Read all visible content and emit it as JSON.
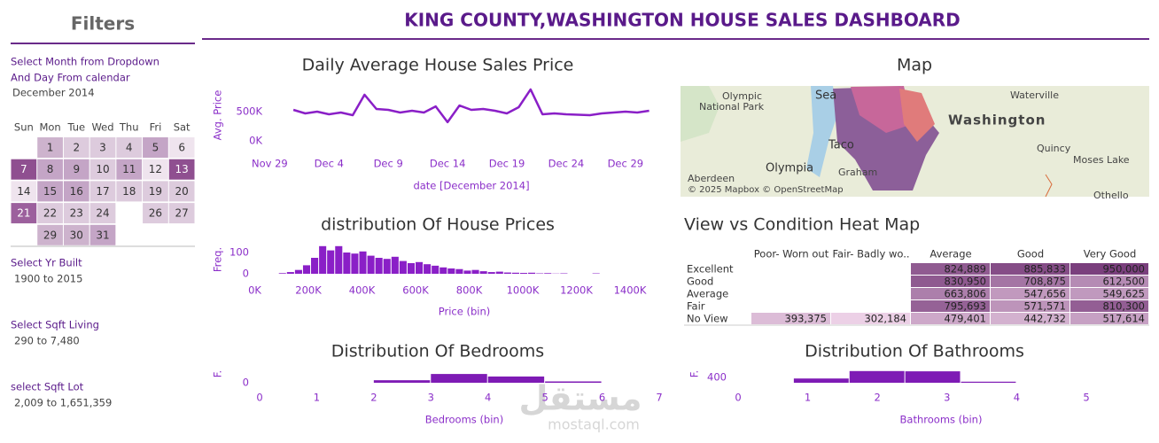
{
  "header": {
    "title": "KING COUNTY,WASHINGTON HOUSE SALES DASHBOARD"
  },
  "filters": {
    "title": "Filters",
    "month_label": [
      "Select Month from Dropdown",
      "And Day From calendar"
    ],
    "month_value": "December 2014",
    "calendar": {
      "weekdays": [
        "Sun",
        "Mon",
        "Tue",
        "Wed",
        "Thu",
        "Fri",
        "Sat"
      ],
      "weeks": [
        [
          null,
          1,
          2,
          3,
          4,
          5,
          6
        ],
        [
          7,
          8,
          9,
          10,
          11,
          12,
          13
        ],
        [
          14,
          15,
          16,
          17,
          18,
          19,
          20
        ],
        [
          21,
          22,
          23,
          24,
          null,
          26,
          27
        ],
        [
          null,
          29,
          30,
          31,
          null,
          null,
          null
        ]
      ],
      "shades": [
        [
          null,
          "#cdb3cd",
          "#ddcbdd",
          "#ddcbdd",
          "#ddcbdd",
          "#c4a5c6",
          "#efe4ee"
        ],
        [
          "#8f4f90",
          "#c4a5c6",
          "#c4a5c6",
          "#ddcbdd",
          "#c4a5c6",
          "#efe4ee",
          "#8f4f90"
        ],
        [
          "#efe4ee",
          "#c4a5c6",
          "#c4a5c6",
          "#ddcbdd",
          "#ddcbdd",
          "#ddcbdd",
          "#ddcbdd"
        ],
        [
          "#9c609d",
          "#ddcbdd",
          "#ddcbdd",
          "#ddcbdd",
          null,
          "#ddcbdd",
          "#ddcbdd"
        ],
        [
          null,
          "#cdb3cd",
          "#cdb3cd",
          "#c4a5c6",
          null,
          null,
          null
        ]
      ]
    },
    "ranges": [
      {
        "label": "Select Yr Built",
        "value": "1900 to 2015"
      },
      {
        "label": "Select Sqft Living",
        "value": "290 to 7,480"
      },
      {
        "label": "select Sqft Lot",
        "value": "2,009 to 1,651,359"
      }
    ]
  },
  "chart_data": [
    {
      "type": "line",
      "title": "Daily Average House Sales Price",
      "x_label": "date [December 2014]",
      "y_label": "Avg. Price",
      "x": [
        1,
        2,
        3,
        4,
        5,
        6,
        7,
        8,
        9,
        10,
        11,
        12,
        13,
        14,
        15,
        16,
        17,
        18,
        19,
        20,
        21,
        22,
        23,
        24,
        26,
        27,
        29,
        30,
        31
      ],
      "values": [
        530000,
        470000,
        500000,
        455000,
        485000,
        440000,
        790000,
        545000,
        530000,
        485000,
        515000,
        485000,
        590000,
        320000,
        605000,
        530000,
        545000,
        515000,
        470000,
        575000,
        880000,
        455000,
        470000,
        455000,
        440000,
        470000,
        500000,
        485000,
        515000
      ],
      "color": "#8a1fc7",
      "xlim": [
        -2,
        32
      ],
      "xticks": [
        {
          "value": -1,
          "label": "Nov 29"
        },
        {
          "value": 4,
          "label": "Dec 4"
        },
        {
          "value": 9,
          "label": "Dec 9"
        },
        {
          "value": 14,
          "label": "Dec 14"
        },
        {
          "value": 19,
          "label": "Dec 19"
        },
        {
          "value": 24,
          "label": "Dec 24"
        },
        {
          "value": 29,
          "label": "Dec 29"
        }
      ],
      "ylim": [
        0,
        900000
      ],
      "yticks": [
        {
          "value": 0,
          "label": "0K"
        },
        {
          "value": 500000,
          "label": "500K"
        }
      ]
    },
    {
      "type": "histogram",
      "title": "distribution Of House Prices",
      "x_label": "Price (bin)",
      "y_label": "Freq.",
      "bins": [
        90000,
        120000,
        150000,
        180000,
        210000,
        240000,
        270000,
        300000,
        330000,
        360000,
        390000,
        420000,
        450000,
        480000,
        510000,
        540000,
        570000,
        600000,
        630000,
        660000,
        690000,
        720000,
        750000,
        780000,
        810000,
        840000,
        870000,
        900000,
        930000,
        960000,
        990000,
        1020000,
        1050000,
        1080000,
        1110000,
        1140000,
        1170000,
        1200000,
        1230000,
        1260000,
        1290000
      ],
      "values": [
        3,
        8,
        18,
        40,
        75,
        130,
        110,
        130,
        100,
        95,
        105,
        85,
        75,
        70,
        80,
        60,
        50,
        55,
        45,
        38,
        30,
        25,
        22,
        15,
        18,
        12,
        8,
        10,
        6,
        5,
        4,
        5,
        2,
        3,
        1,
        2,
        0,
        0,
        0,
        2
      ],
      "color": "#8a1fc7",
      "xlim": [
        0,
        1400000
      ],
      "xticks": [
        {
          "value": 0,
          "label": "0K"
        },
        {
          "value": 200000,
          "label": "200K"
        },
        {
          "value": 400000,
          "label": "400K"
        },
        {
          "value": 600000,
          "label": "600K"
        },
        {
          "value": 800000,
          "label": "800K"
        },
        {
          "value": 1000000,
          "label": "1000K"
        },
        {
          "value": 1200000,
          "label": "1200K"
        },
        {
          "value": 1400000,
          "label": "1400K"
        }
      ],
      "ylim": [
        0,
        140
      ],
      "yticks": [
        0,
        100
      ]
    },
    {
      "type": "histogram",
      "title": "Distribution Of Bedrooms",
      "x_label": "Bedrooms (bin)",
      "y_label": "F.",
      "bins": [
        2,
        3,
        4,
        5,
        6
      ],
      "values": [
        190,
        660,
        470,
        100
      ],
      "color": "#7e1bb5",
      "xlim": [
        0,
        7
      ],
      "xticks": [
        0,
        1,
        2,
        3,
        4,
        5,
        6,
        7
      ],
      "ylim": [
        0,
        1000
      ],
      "yticks": [
        0
      ]
    },
    {
      "type": "histogram",
      "title": "Distribution Of Bathrooms",
      "x_label": "Bathrooms (bin)",
      "y_label": "F.",
      "bins": [
        0.8,
        1.6,
        2.4,
        3.2,
        4.0
      ],
      "values": [
        320,
        880,
        860,
        80
      ],
      "color": "#7e1bb5",
      "xlim": [
        0,
        5
      ],
      "xticks": [
        0,
        1,
        2,
        3,
        4,
        5
      ],
      "ylim": [
        0,
        1000
      ],
      "yticks": [
        400
      ]
    },
    {
      "type": "heatmap",
      "title": "View vs Condition Heat Map",
      "columns": [
        "Poor- Worn out",
        "Fair- Badly wo..",
        "Average",
        "Good",
        "Very Good"
      ],
      "rows": [
        "Excellent",
        "Good",
        "Average",
        "Fair",
        "No View"
      ],
      "values": [
        [
          null,
          null,
          824889,
          885833,
          950000
        ],
        [
          null,
          null,
          830950,
          708875,
          612500
        ],
        [
          null,
          null,
          663806,
          547656,
          549625
        ],
        [
          null,
          null,
          795693,
          571571,
          810300
        ],
        [
          393375,
          302184,
          479401,
          442732,
          517614
        ]
      ],
      "value_labels": [
        [
          null,
          null,
          "824,889",
          "885,833",
          "950,000"
        ],
        [
          null,
          null,
          "830,950",
          "708,875",
          "612,500"
        ],
        [
          null,
          null,
          "663,806",
          "547,656",
          "549,625"
        ],
        [
          null,
          null,
          "795,693",
          "571,571",
          "810,300"
        ],
        [
          "393,375",
          "302,184",
          "479,401",
          "442,732",
          "517,614"
        ]
      ],
      "color_range": [
        "#ecd0e6",
        "#7a3f7d"
      ]
    }
  ],
  "map": {
    "title": "Map",
    "labels": [
      "Olympic",
      "National Park",
      "Waterville",
      "Washington",
      "Quincy",
      "Moses Lake",
      "Olympia",
      "Graham",
      "Aberdeen",
      "Taco",
      "Sea",
      "Othello",
      "© 2025 Mapbox © OpenStreetMap"
    ]
  },
  "watermark": {
    "text": "مستقل",
    "url": "mostaql.com"
  }
}
